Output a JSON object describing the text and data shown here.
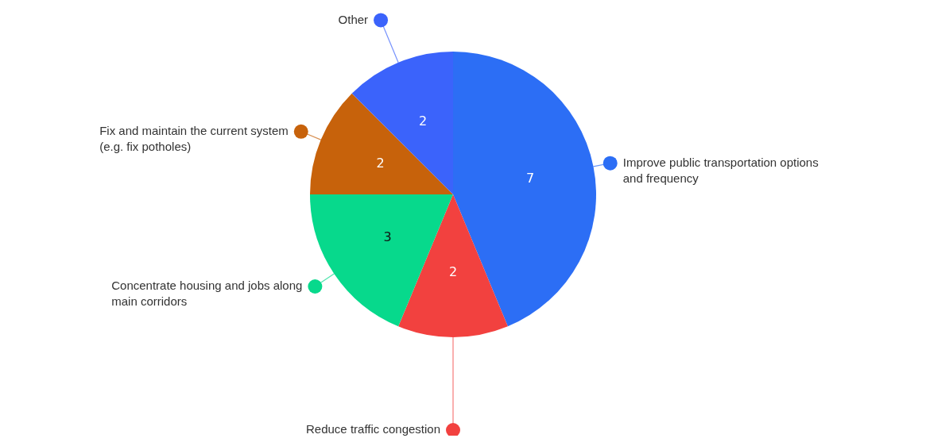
{
  "chart_data": {
    "type": "pie",
    "categories": [
      "Improve public transportation options and frequency",
      "Reduce traffic congestion",
      "Concentrate housing and jobs along main corridors",
      "Fix and maintain the current system (e.g. fix potholes)",
      "Other"
    ],
    "values": [
      7,
      2,
      3,
      2,
      2
    ],
    "colors": [
      "#2c6ef5",
      "#f2413f",
      "#07d98c",
      "#c7620b",
      "#3b63fb"
    ],
    "data_labels": true,
    "legend": "left"
  }
}
